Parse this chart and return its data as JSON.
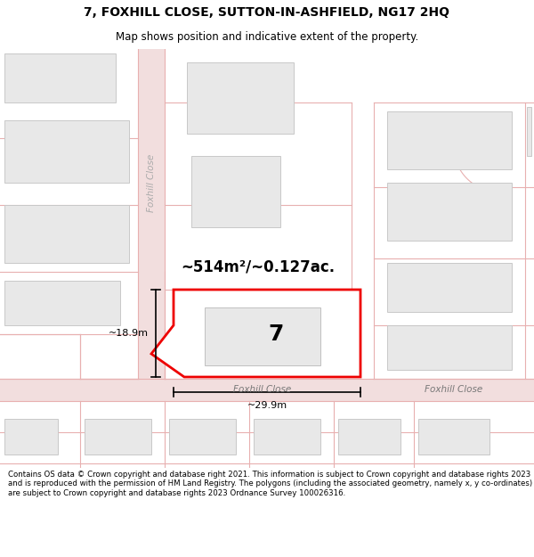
{
  "title": "7, FOXHILL CLOSE, SUTTON-IN-ASHFIELD, NG17 2HQ",
  "subtitle": "Map shows position and indicative extent of the property.",
  "footer_text": "Contains OS data © Crown copyright and database right 2021. This information is subject to Crown copyright and database rights 2023 and is reproduced with the permission of HM Land Registry. The polygons (including the associated geometry, namely x, y co-ordinates) are subject to Crown copyright and database rights 2023 Ordnance Survey 100026316.",
  "map_bg": "#f7f3f3",
  "road_stroke": "#e8b0b0",
  "road_fill": "#f2dede",
  "building_fill": "#e8e8e8",
  "building_edge": "#c8c8c8",
  "highlight_color": "#ee0000",
  "highlight_fill": "#ffffff",
  "area_text": "~514m²/~0.127ac.",
  "number_text": "7",
  "dim_width": "~29.9m",
  "dim_height": "~18.9m",
  "road_label_center": "Foxhill Close",
  "road_label_right": "Foxhill Close",
  "road_label_vert": "Foxhill Close"
}
